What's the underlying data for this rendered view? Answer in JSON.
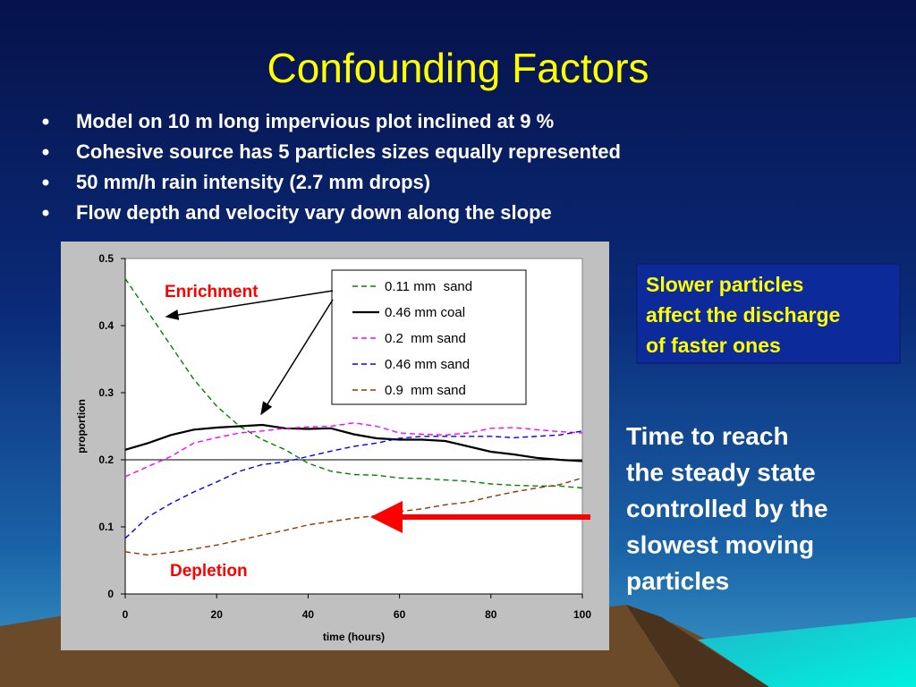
{
  "title": "Confounding Factors",
  "bullets": [
    "Model on 10 m long impervious plot inclined at 9 %",
    "Cohesive source has 5 particles sizes equally represented",
    "50 mm/h rain intensity  (2.7 mm drops)",
    "Flow depth and velocity vary down along the slope"
  ],
  "callout": [
    "Slower particles",
    "affect the discharge",
    "of faster ones"
  ],
  "note": [
    "Time to reach",
    "the steady state",
    "controlled by the",
    "slowest moving",
    "particles"
  ],
  "chart_data": {
    "type": "line",
    "xlabel": "time (hours)",
    "ylabel": "proportion",
    "annotations": [
      "Enrichment",
      "Depletion"
    ],
    "x": [
      0,
      5,
      10,
      15,
      20,
      25,
      30,
      35,
      40,
      45,
      50,
      55,
      60,
      65,
      70,
      75,
      80,
      85,
      90,
      95,
      100
    ],
    "series": [
      {
        "name": "0.11 mm  sand",
        "color": "#008000",
        "style": "dashed",
        "values": [
          0.47,
          0.42,
          0.37,
          0.32,
          0.28,
          0.25,
          0.23,
          0.215,
          0.195,
          0.183,
          0.178,
          0.177,
          0.173,
          0.172,
          0.17,
          0.168,
          0.164,
          0.162,
          0.161,
          0.161,
          0.158
        ]
      },
      {
        "name": "0.46 mm coal",
        "color": "#000000",
        "style": "solid",
        "values": [
          0.215,
          0.225,
          0.237,
          0.245,
          0.248,
          0.25,
          0.252,
          0.247,
          0.246,
          0.247,
          0.238,
          0.232,
          0.23,
          0.23,
          0.228,
          0.22,
          0.212,
          0.208,
          0.203,
          0.2,
          0.198
        ]
      },
      {
        "name": "0.2  mm sand",
        "color": "#ff00ff",
        "style": "dashed",
        "values": [
          0.175,
          0.19,
          0.205,
          0.225,
          0.233,
          0.24,
          0.243,
          0.247,
          0.249,
          0.25,
          0.255,
          0.25,
          0.24,
          0.238,
          0.237,
          0.24,
          0.247,
          0.248,
          0.245,
          0.242,
          0.24
        ]
      },
      {
        "name": "0.46 mm sand",
        "color": "#0000ff",
        "style": "dashed",
        "values": [
          0.083,
          0.115,
          0.135,
          0.152,
          0.167,
          0.183,
          0.193,
          0.197,
          0.205,
          0.213,
          0.22,
          0.225,
          0.232,
          0.235,
          0.235,
          0.235,
          0.235,
          0.233,
          0.235,
          0.237,
          0.243
        ]
      },
      {
        "name": "0.9  mm sand",
        "color": "#993300",
        "style": "dashed",
        "values": [
          0.063,
          0.058,
          0.062,
          0.067,
          0.073,
          0.08,
          0.088,
          0.095,
          0.103,
          0.108,
          0.113,
          0.117,
          0.123,
          0.127,
          0.133,
          0.137,
          0.145,
          0.152,
          0.158,
          0.163,
          0.173
        ]
      }
    ],
    "xlim": [
      0,
      100
    ],
    "ylim": [
      0,
      0.5
    ],
    "xticks": [
      0,
      20,
      40,
      60,
      80,
      100
    ],
    "yticks": [
      0,
      0.1,
      0.2,
      0.3,
      0.4,
      0.5
    ],
    "reference_line": 0.2,
    "grid": false
  }
}
